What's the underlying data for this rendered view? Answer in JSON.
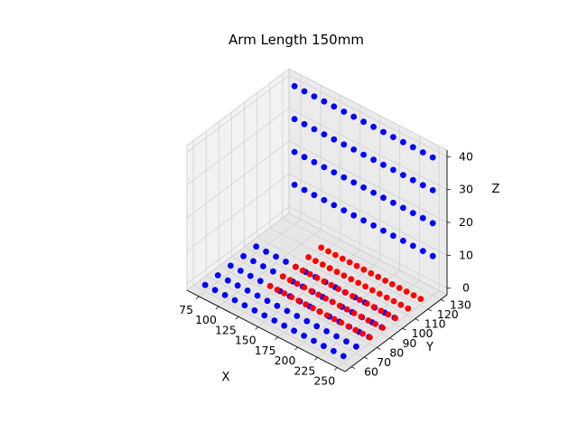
{
  "chart_data": {
    "type": "scatter",
    "projection": "3d",
    "title": "Arm Length 150mm",
    "xlabel": "X",
    "ylabel": "Y",
    "zlabel": "Z",
    "xlim": [
      60,
      260
    ],
    "ylim": [
      55,
      135
    ],
    "zlim": [
      -2,
      42
    ],
    "xticks": [
      75,
      100,
      125,
      150,
      175,
      200,
      225,
      250
    ],
    "yticks": [
      60,
      70,
      80,
      90,
      100,
      110,
      120,
      130
    ],
    "zticks": [
      0,
      10,
      20,
      30,
      40
    ],
    "grid": true,
    "pane_color": "#f2f2f2",
    "grid_color": "#cccccc",
    "series": [
      {
        "color": "#0000ff",
        "groups": [
          {
            "y": 60,
            "z": 0,
            "x_start": 75,
            "x_step": 12.5,
            "count": 15
          },
          {
            "y": 70,
            "z": 0,
            "x_start": 75,
            "x_step": 12.5,
            "count": 15
          },
          {
            "y": 80,
            "z": 0,
            "x_start": 75,
            "x_step": 12.5,
            "count": 15
          },
          {
            "y": 90,
            "z": 0,
            "x_start": 75,
            "x_step": 12.5,
            "count": 15
          },
          {
            "y": 100,
            "z": 0,
            "x_start": 75,
            "x_step": 12.5,
            "count": 15
          },
          {
            "y": 130,
            "z": 10,
            "x_start": 75,
            "x_step": 12.5,
            "count": 15
          },
          {
            "y": 130,
            "z": 20,
            "x_start": 75,
            "x_step": 12.5,
            "count": 15
          },
          {
            "y": 130,
            "z": 30,
            "x_start": 75,
            "x_step": 12.5,
            "count": 15
          },
          {
            "y": 130,
            "z": 40,
            "x_start": 75,
            "x_step": 12.5,
            "count": 15
          }
        ]
      },
      {
        "color": "#ff0000",
        "groups": [
          {
            "y": 80,
            "z": 0,
            "x_start": 125,
            "x_step": 9,
            "count": 15
          },
          {
            "y": 90,
            "z": 0,
            "x_start": 125,
            "x_step": 9,
            "count": 15
          },
          {
            "y": 100,
            "z": 0,
            "x_start": 125,
            "x_step": 9,
            "count": 15
          },
          {
            "y": 110,
            "z": 0,
            "x_start": 125,
            "x_step": 9,
            "count": 15
          },
          {
            "y": 120,
            "z": 0,
            "x_start": 125,
            "x_step": 9,
            "count": 15
          }
        ]
      }
    ]
  }
}
